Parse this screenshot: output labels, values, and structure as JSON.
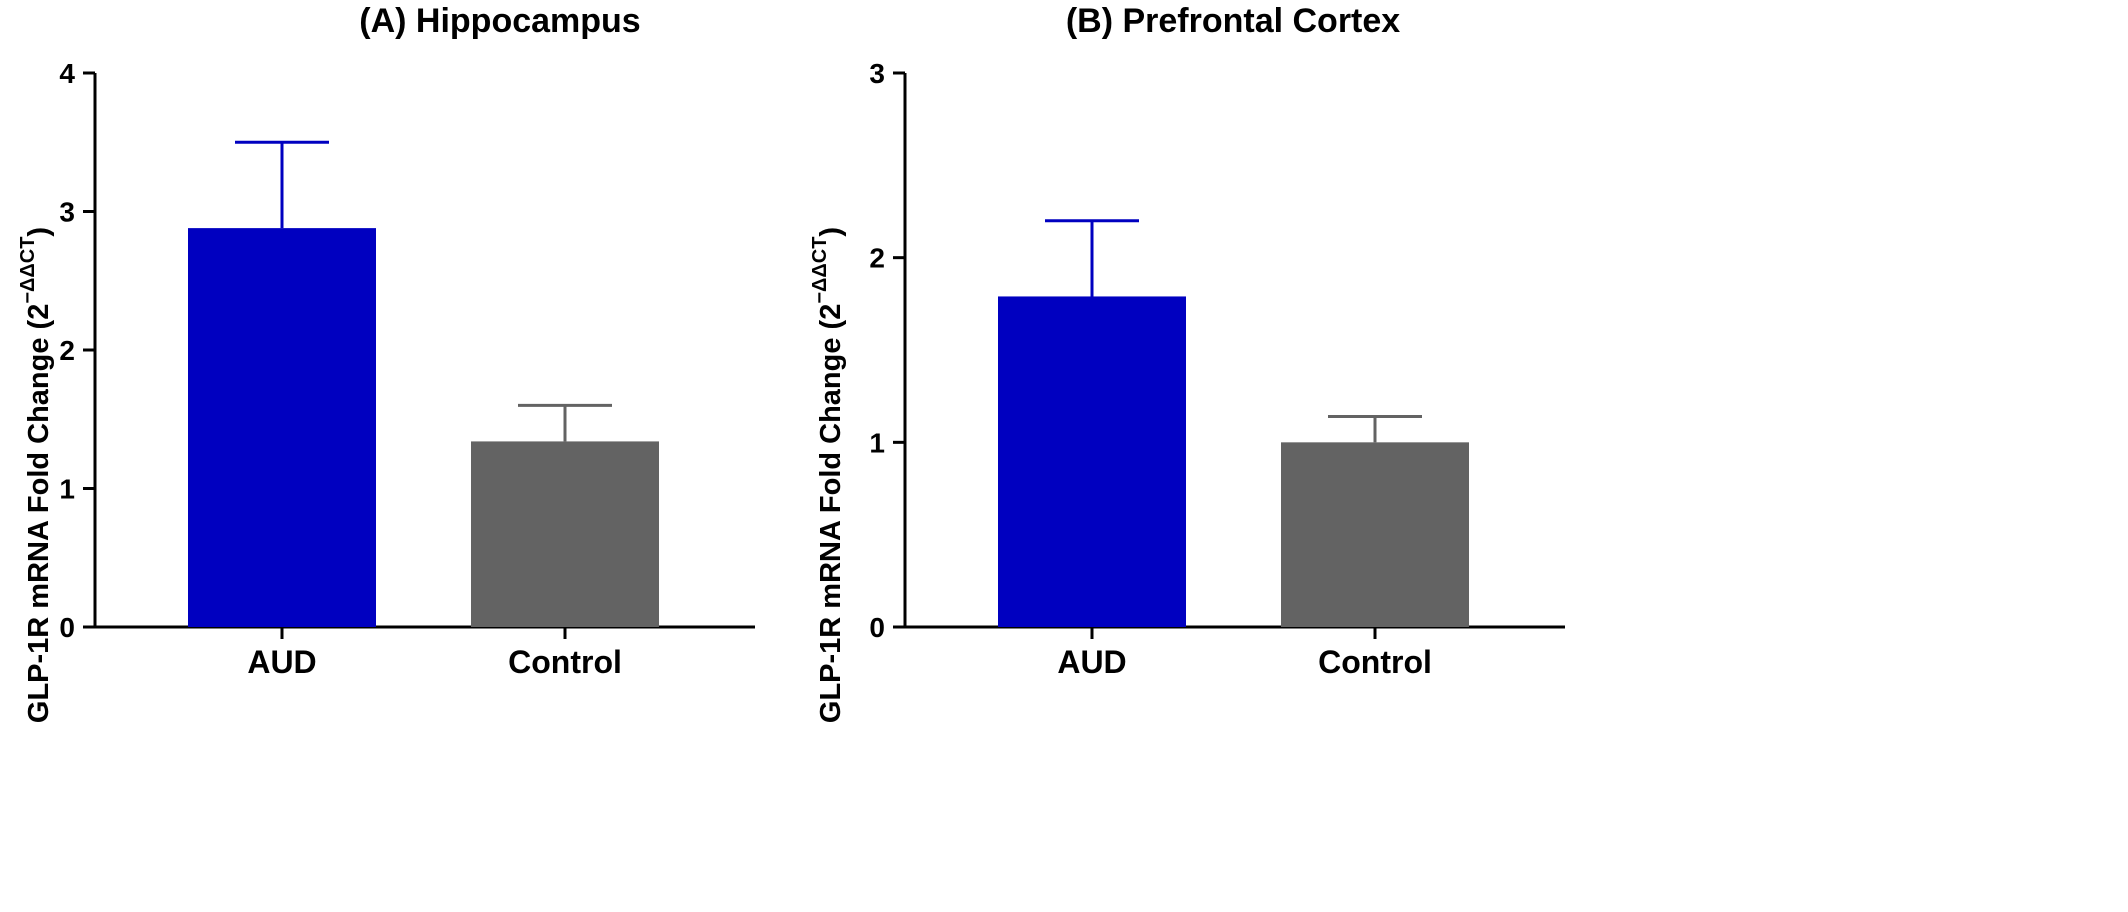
{
  "chart_data": [
    {
      "type": "bar",
      "title": "(A) Hippocampus",
      "ylabel": "GLP-1R mRNA Fold Change (2",
      "ylabel_superscript": "−ΔΔCT",
      "ylabel_close": ")",
      "categories": [
        "AUD",
        "Control"
      ],
      "values": [
        2.88,
        1.34
      ],
      "error_upper": [
        3.5,
        1.6
      ],
      "colors": [
        "#0000c0",
        "#636363"
      ],
      "error_colors": [
        "#0000c0",
        "#636363"
      ],
      "ylim": [
        0,
        4
      ],
      "yticks": [
        "0",
        "1",
        "2",
        "3",
        "4"
      ],
      "grid": false
    },
    {
      "type": "bar",
      "title": "(B) Prefrontal Cortex",
      "ylabel": "GLP-1R mRNA Fold Change (2",
      "ylabel_superscript": "−ΔΔCT",
      "ylabel_close": ")",
      "categories": [
        "AUD",
        "Control"
      ],
      "values": [
        1.79,
        1.0
      ],
      "error_upper": [
        2.2,
        1.14
      ],
      "colors": [
        "#0000c0",
        "#636363"
      ],
      "error_colors": [
        "#0000c0",
        "#636363"
      ],
      "ylim": [
        0,
        3
      ],
      "yticks": [
        "0",
        "1",
        "2",
        "3"
      ],
      "grid": false
    }
  ]
}
